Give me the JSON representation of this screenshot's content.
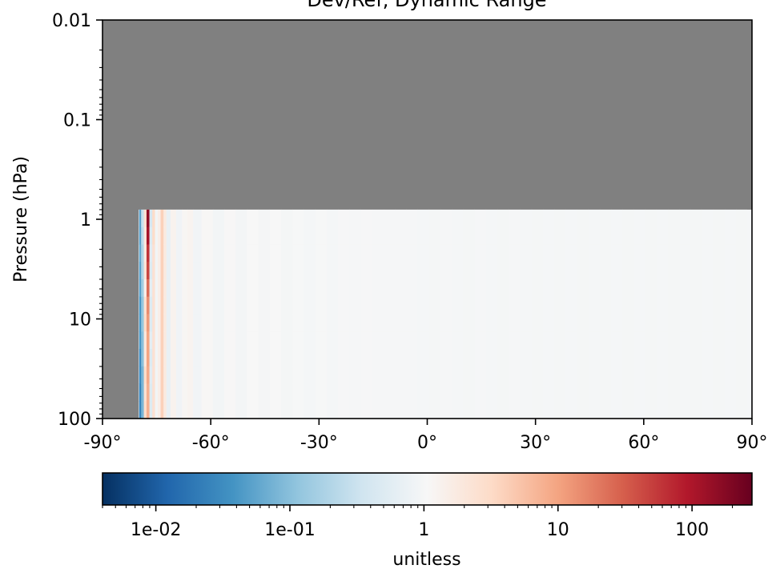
{
  "chart_data": {
    "type": "heatmap",
    "title": "Dev/Ref, Dynamic Range",
    "ylabel": "Pressure (hPa)",
    "xlabel": "",
    "x_scale": "linear",
    "y_scale": "log",
    "y_inverted": true,
    "xlim": [
      -90,
      90
    ],
    "ylim": [
      100,
      0.01
    ],
    "x_ticks": [
      -90,
      -60,
      -30,
      0,
      30,
      60,
      90
    ],
    "x_tick_labels": [
      "-90°",
      "-60°",
      "-30°",
      "0°",
      "30°",
      "60°",
      "90°"
    ],
    "y_ticks": [
      0.01,
      0.1,
      1,
      10,
      100
    ],
    "y_tick_labels": [
      "0.01",
      "0.1",
      "1",
      "10",
      "100"
    ],
    "missing_color": "#808080",
    "data_region": {
      "lat_min": -80,
      "lat_max": 90,
      "p_min": 0.8,
      "p_max": 100
    },
    "colorbar": {
      "cmap": "RdBu_r",
      "scale": "log",
      "range": [
        0.004,
        280
      ],
      "ticks": [
        0.01,
        0.1,
        1,
        10,
        100
      ],
      "tick_labels": [
        "1e-02",
        "1e-01",
        "1",
        "10",
        "100"
      ],
      "label": "unitless"
    },
    "columns": [
      {
        "lat": -79.7,
        "values": [
          0.05,
          0.05,
          0.06,
          0.05,
          0.05,
          0.04,
          0.04,
          0.04,
          0.03,
          0.03,
          0.025,
          0.025
        ]
      },
      {
        "lat": -78.9,
        "values": [
          0.3,
          0.25,
          0.2,
          0.2,
          0.15,
          0.12,
          0.12,
          0.1,
          0.1,
          0.08,
          0.08,
          0.08
        ]
      },
      {
        "lat": -78.2,
        "values": [
          2.5,
          2,
          1.8,
          2.2,
          1.5,
          2.5,
          3,
          2,
          2,
          3,
          2.5,
          3
        ]
      },
      {
        "lat": -77.4,
        "values": [
          150,
          110,
          60,
          45,
          25,
          15,
          12,
          10,
          10,
          9,
          8,
          8
        ]
      },
      {
        "lat": -76.6,
        "values": [
          0.4,
          0.5,
          0.55,
          0.5,
          0.6,
          0.5,
          0.5,
          0.6,
          0.5,
          0.55,
          0.5,
          0.5
        ]
      },
      {
        "lat": -75.8,
        "values": [
          3,
          3,
          2.5,
          2.5,
          2.5,
          2.5,
          2.5,
          2.5,
          2.5,
          2.5,
          2.5,
          2.5
        ]
      },
      {
        "lat": -75.1,
        "values": [
          0.9,
          0.9,
          0.9,
          0.9,
          0.9,
          0.9,
          0.9,
          0.9,
          0.9,
          0.9,
          0.9,
          0.9
        ]
      },
      {
        "lat": -74.3,
        "values": [
          1.5,
          1.5,
          1.5,
          1.5,
          1.5,
          1.5,
          1.5,
          1.5,
          1.5,
          1.5,
          1.5,
          1.5
        ]
      },
      {
        "lat": -73.5,
        "values": [
          4,
          4,
          4,
          4,
          4,
          4,
          4,
          4,
          4,
          4,
          4,
          4
        ]
      },
      {
        "lat": -72.7,
        "values": [
          1.8,
          1.8,
          1.8,
          1.8,
          1.8,
          1.8,
          1.8,
          1.8,
          1.8,
          1.8,
          1.8,
          1.8
        ]
      },
      {
        "lat": -71.9,
        "values": [
          0.7,
          0.7,
          0.7,
          0.7,
          0.7,
          0.7,
          0.7,
          0.7,
          0.7,
          0.7,
          0.7,
          0.7
        ]
      },
      {
        "lat": -70.4,
        "values": [
          1.3,
          1.3,
          1.3,
          1.3,
          1.3,
          1.3,
          1.3,
          1.3,
          1.3,
          1.3,
          1.3,
          1.3
        ]
      },
      {
        "lat": -68.8,
        "values": [
          0.85,
          0.85,
          0.85,
          0.85,
          0.85,
          0.85,
          0.85,
          0.85,
          0.85,
          0.85,
          0.85,
          0.85
        ]
      },
      {
        "lat": -67.2,
        "values": [
          1.15,
          1.15,
          1.15,
          1.15,
          1.15,
          1.15,
          1.15,
          1.15,
          1.15,
          1.15,
          1.15,
          1.15
        ]
      },
      {
        "lat": -65.7,
        "values": [
          1.25,
          1.25,
          1.25,
          1.25,
          1.25,
          1.25,
          1.25,
          1.25,
          1.25,
          1.25,
          1.25,
          1.25
        ]
      },
      {
        "lat": -64.1,
        "values": [
          0.9,
          0.9,
          0.9,
          0.9,
          0.9,
          0.9,
          0.9,
          0.9,
          0.9,
          0.9,
          0.9,
          0.9
        ]
      },
      {
        "lat": -61.0,
        "values": [
          1.1,
          1.1,
          1.1,
          1.1,
          1.1,
          1.1,
          1.1,
          1.1,
          1.1,
          1.1,
          1.1,
          1.1
        ]
      },
      {
        "lat": -57.8,
        "values": [
          0.92,
          0.92,
          0.92,
          0.92,
          0.92,
          0.92,
          0.92,
          0.92,
          0.92,
          0.92,
          0.92,
          0.92
        ]
      },
      {
        "lat": -54.7,
        "values": [
          1.08,
          1.08,
          1.08,
          1.08,
          1.08,
          1.08,
          1.08,
          1.08,
          1.08,
          1.08,
          1.08,
          1.08
        ]
      },
      {
        "lat": -51.5,
        "values": [
          0.95,
          0.95,
          0.95,
          0.95,
          0.95,
          0.95,
          0.95,
          0.95,
          0.95,
          0.95,
          0.95,
          0.95
        ]
      },
      {
        "lat": -48.4,
        "values": [
          1.06,
          1.06,
          1.06,
          1.06,
          1.06,
          1.06,
          1.06,
          1.06,
          1.06,
          1.06,
          1.06,
          1.06
        ]
      },
      {
        "lat": -45.2,
        "values": [
          0.96,
          0.96,
          0.96,
          0.96,
          0.96,
          0.96,
          0.96,
          0.96,
          0.96,
          0.96,
          0.96,
          0.96
        ]
      },
      {
        "lat": -42.1,
        "values": [
          1.05,
          1.05,
          1.05,
          1.05,
          1.05,
          1.05,
          1.05,
          1.05,
          1.05,
          1.05,
          1.05,
          1.05
        ]
      },
      {
        "lat": -38.9,
        "values": [
          0.97,
          0.97,
          0.97,
          0.97,
          0.97,
          0.97,
          0.97,
          0.97,
          0.97,
          0.97,
          0.97,
          0.97
        ]
      },
      {
        "lat": -35.8,
        "values": [
          1.03,
          1.03,
          1.03,
          1.03,
          1.03,
          1.03,
          1.03,
          1.03,
          1.03,
          1.03,
          1.03,
          1.03
        ]
      },
      {
        "lat": -32.6,
        "values": [
          0.98,
          0.98,
          0.98,
          0.98,
          0.98,
          0.98,
          0.98,
          0.98,
          0.98,
          0.98,
          0.98,
          0.98
        ]
      },
      {
        "lat": -29.5,
        "values": [
          1.04,
          1.04,
          1.04,
          1.04,
          1.04,
          1.04,
          1.04,
          1.04,
          1.04,
          1.04,
          1.04,
          1.04
        ]
      },
      {
        "lat": -26.3,
        "values": [
          0.98,
          0.98,
          0.98,
          0.98,
          0.98,
          0.98,
          0.98,
          0.98,
          0.98,
          0.98,
          0.98,
          0.98
        ]
      },
      {
        "lat": -23.2,
        "values": [
          1.02,
          1.02,
          1.02,
          1.02,
          1.02,
          1.02,
          1.02,
          1.02,
          1.02,
          1.02,
          1.02,
          1.02
        ]
      },
      {
        "lat": -20.0,
        "values": [
          0.99,
          0.99,
          0.99,
          0.99,
          0.99,
          0.99,
          0.99,
          0.99,
          0.99,
          0.99,
          0.99,
          0.99
        ]
      },
      {
        "lat": -16.8,
        "values": [
          1.02,
          1.02,
          1.02,
          1.02,
          1.02,
          1.02,
          1.02,
          1.02,
          1.02,
          1.02,
          1.02,
          1.02
        ]
      },
      {
        "lat": -13.7,
        "values": [
          0.99,
          0.99,
          0.99,
          0.99,
          0.99,
          0.99,
          0.99,
          0.99,
          0.99,
          0.99,
          0.99,
          0.99
        ]
      },
      {
        "lat": -10.5,
        "values": [
          1.01,
          1.01,
          1.01,
          1.01,
          1.01,
          1.01,
          1.01,
          1.01,
          1.01,
          1.01,
          1.01,
          1.01
        ]
      },
      {
        "lat": -7.4,
        "values": [
          0.99,
          0.99,
          0.99,
          0.99,
          0.99,
          0.99,
          0.99,
          0.99,
          0.99,
          0.99,
          0.99,
          0.99
        ]
      },
      {
        "lat": -4.2,
        "values": [
          1.01,
          1.01,
          1.01,
          1.01,
          1.01,
          1.01,
          1.01,
          1.01,
          1.01,
          1.01,
          1.01,
          1.01
        ]
      },
      {
        "lat": -1.1,
        "values": [
          0.98,
          0.98,
          0.98,
          0.98,
          0.98,
          0.98,
          0.98,
          0.98,
          0.98,
          0.98,
          0.98,
          0.98
        ]
      },
      {
        "lat": 2.1,
        "values": [
          0.97,
          0.97,
          0.97,
          0.97,
          0.97,
          0.97,
          0.97,
          0.97,
          0.97,
          0.97,
          0.97,
          0.97
        ]
      },
      {
        "lat": 5.2,
        "values": [
          1.0,
          1.0,
          1.0,
          1.0,
          1.0,
          1.0,
          1.0,
          1.0,
          1.0,
          1.0,
          1.0,
          1.0
        ]
      },
      {
        "lat": 8.4,
        "values": [
          0.98,
          0.98,
          0.98,
          0.98,
          0.98,
          0.98,
          0.98,
          0.98,
          0.98,
          0.98,
          0.98,
          0.98
        ]
      },
      {
        "lat": 11.5,
        "values": [
          0.97,
          0.97,
          0.97,
          0.97,
          0.97,
          0.97,
          0.97,
          0.97,
          0.97,
          0.97,
          0.97,
          0.97
        ]
      },
      {
        "lat": 14.7,
        "values": [
          0.99,
          0.99,
          0.99,
          0.99,
          0.99,
          0.99,
          0.99,
          0.99,
          0.99,
          0.99,
          0.99,
          0.99
        ]
      },
      {
        "lat": 17.8,
        "values": [
          0.98,
          0.98,
          0.98,
          0.98,
          0.98,
          0.98,
          0.98,
          0.98,
          0.98,
          0.98,
          0.98,
          0.98
        ]
      },
      {
        "lat": 21.0,
        "values": [
          0.97,
          0.97,
          0.97,
          0.97,
          0.97,
          0.97,
          0.97,
          0.97,
          0.97,
          0.97,
          0.97,
          0.97
        ]
      },
      {
        "lat": 24.1,
        "values": [
          0.99,
          0.99,
          0.99,
          0.99,
          0.99,
          0.99,
          0.99,
          0.99,
          0.99,
          0.99,
          0.99,
          0.99
        ]
      },
      {
        "lat": 27.3,
        "values": [
          0.98,
          0.98,
          0.98,
          0.98,
          0.98,
          0.98,
          0.98,
          0.98,
          0.98,
          0.98,
          0.98,
          0.98
        ]
      },
      {
        "lat": 30.5,
        "values": [
          0.97,
          0.97,
          0.97,
          0.97,
          0.97,
          0.97,
          0.97,
          0.97,
          0.97,
          0.97,
          0.97,
          0.97
        ]
      },
      {
        "lat": 33.6,
        "values": [
          0.98,
          0.98,
          0.98,
          0.98,
          0.98,
          0.98,
          0.98,
          0.98,
          0.98,
          0.98,
          0.98,
          0.98
        ]
      },
      {
        "lat": 36.8,
        "values": [
          0.97,
          0.97,
          0.97,
          0.97,
          0.97,
          0.97,
          0.97,
          0.97,
          0.97,
          0.97,
          0.97,
          0.97
        ]
      },
      {
        "lat": 39.9,
        "values": [
          0.98,
          0.98,
          0.98,
          0.98,
          0.98,
          0.98,
          0.98,
          0.98,
          0.98,
          0.98,
          0.98,
          0.98
        ]
      },
      {
        "lat": 43.1,
        "values": [
          0.97,
          0.97,
          0.97,
          0.97,
          0.97,
          0.97,
          0.97,
          0.97,
          0.97,
          0.97,
          0.97,
          0.97
        ]
      },
      {
        "lat": 46.2,
        "values": [
          0.98,
          0.98,
          0.98,
          0.98,
          0.98,
          0.98,
          0.98,
          0.98,
          0.98,
          0.98,
          0.98,
          0.98
        ]
      },
      {
        "lat": 49.4,
        "values": [
          0.97,
          0.97,
          0.97,
          0.97,
          0.97,
          0.97,
          0.97,
          0.97,
          0.97,
          0.97,
          0.97,
          0.97
        ]
      },
      {
        "lat": 52.5,
        "values": [
          0.98,
          0.98,
          0.98,
          0.98,
          0.98,
          0.98,
          0.98,
          0.98,
          0.98,
          0.98,
          0.98,
          0.98
        ]
      },
      {
        "lat": 55.7,
        "values": [
          0.97,
          0.97,
          0.97,
          0.97,
          0.97,
          0.97,
          0.97,
          0.97,
          0.97,
          0.97,
          0.97,
          0.97
        ]
      },
      {
        "lat": 58.8,
        "values": [
          0.98,
          0.98,
          0.98,
          0.98,
          0.98,
          0.98,
          0.98,
          0.98,
          0.98,
          0.98,
          0.98,
          0.98
        ]
      },
      {
        "lat": 62.0,
        "values": [
          0.97,
          0.97,
          0.97,
          0.97,
          0.97,
          0.97,
          0.97,
          0.97,
          0.97,
          0.97,
          0.97,
          0.97
        ]
      },
      {
        "lat": 65.1,
        "values": [
          0.98,
          0.98,
          0.98,
          0.98,
          0.98,
          0.98,
          0.98,
          0.98,
          0.98,
          0.98,
          0.98,
          0.98
        ]
      },
      {
        "lat": 68.3,
        "values": [
          0.97,
          0.97,
          0.97,
          0.97,
          0.97,
          0.97,
          0.97,
          0.97,
          0.97,
          0.97,
          0.97,
          0.97
        ]
      },
      {
        "lat": 71.4,
        "values": [
          0.98,
          0.98,
          0.98,
          0.98,
          0.98,
          0.98,
          0.98,
          0.98,
          0.98,
          0.98,
          0.98,
          0.98
        ]
      },
      {
        "lat": 74.6,
        "values": [
          0.97,
          0.97,
          0.97,
          0.97,
          0.97,
          0.97,
          0.97,
          0.97,
          0.97,
          0.97,
          0.97,
          0.97
        ]
      },
      {
        "lat": 77.7,
        "values": [
          0.98,
          0.98,
          0.98,
          0.98,
          0.98,
          0.98,
          0.98,
          0.98,
          0.98,
          0.98,
          0.98,
          0.98
        ]
      },
      {
        "lat": 80.9,
        "values": [
          0.97,
          0.97,
          0.97,
          0.97,
          0.97,
          0.97,
          0.97,
          0.97,
          0.97,
          0.97,
          0.97,
          0.97
        ]
      },
      {
        "lat": 84.0,
        "values": [
          0.98,
          0.98,
          0.98,
          0.98,
          0.98,
          0.98,
          0.98,
          0.98,
          0.98,
          0.98,
          0.98,
          0.98
        ]
      },
      {
        "lat": 87.2,
        "values": [
          0.97,
          0.97,
          0.97,
          0.97,
          0.97,
          0.97,
          0.97,
          0.97,
          0.97,
          0.97,
          0.97,
          0.97
        ]
      }
    ]
  }
}
